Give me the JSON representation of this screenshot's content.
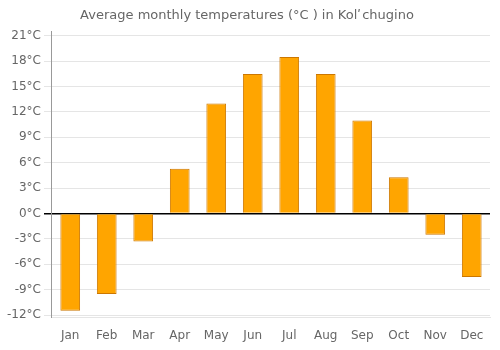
{
  "chart_data": {
    "type": "bar",
    "title": "Average monthly temperatures (°C ) in Kolʹ chugino",
    "categories": [
      "Jan",
      "Feb",
      "Mar",
      "Apr",
      "May",
      "Jun",
      "Jul",
      "Aug",
      "Sep",
      "Oct",
      "Nov",
      "Dec"
    ],
    "values": [
      -11.5,
      -9.5,
      -3.3,
      5.3,
      13.0,
      16.5,
      18.5,
      16.5,
      11.0,
      4.3,
      -2.5,
      -7.5
    ],
    "color": "#FFA500",
    "ylim": [
      -12.3,
      21.5
    ],
    "yticks": [
      {
        "value": -12,
        "label": "-12°C"
      },
      {
        "value": -9,
        "label": "-9°C"
      },
      {
        "value": -6,
        "label": "-6°C"
      },
      {
        "value": -3,
        "label": "-3°C"
      },
      {
        "value": 0,
        "label": "0°C"
      },
      {
        "value": 3,
        "label": "3°C"
      },
      {
        "value": 6,
        "label": "6°C"
      },
      {
        "value": 9,
        "label": "9°C"
      },
      {
        "value": 12,
        "label": "12°C"
      },
      {
        "value": 15,
        "label": "15°C"
      },
      {
        "value": 18,
        "label": "18°C"
      },
      {
        "value": 21,
        "label": "21°C"
      }
    ],
    "grid": true
  }
}
